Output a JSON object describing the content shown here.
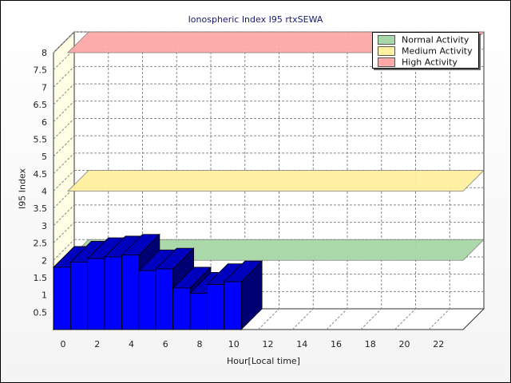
{
  "chart_data": {
    "type": "bar",
    "title": "Ionospheric Index I95 rtxSEWA",
    "xlabel": "Hour[Local time]",
    "ylabel": "I95 Index",
    "x_ticks": [
      "0",
      "2",
      "4",
      "6",
      "8",
      "10",
      "12",
      "14",
      "16",
      "18",
      "20",
      "22"
    ],
    "y_ticks": [
      "0.5",
      "1",
      "1.5",
      "2",
      "2.5",
      "3",
      "3.5",
      "4",
      "4.5",
      "5",
      "5.5",
      "6",
      "6.5",
      "7",
      "7.5",
      "8"
    ],
    "ylim": [
      0,
      8
    ],
    "xlim": [
      0,
      24
    ],
    "grid": true,
    "three_d": true,
    "legend_position": "top-right",
    "series": [
      {
        "x": [
          0,
          1,
          2,
          3,
          4,
          5,
          6,
          7,
          8,
          9,
          10
        ],
        "values": [
          1.8,
          1.95,
          2.05,
          2.1,
          2.15,
          1.7,
          1.75,
          1.2,
          1.05,
          1.3,
          1.38
        ],
        "color": "#0000ff"
      }
    ],
    "activity_levels": [
      {
        "name": "Normal Activity",
        "value": 2.0,
        "color": "#a8d8a8"
      },
      {
        "name": "Medium Activity",
        "value": 4.0,
        "color": "#fff0a0"
      },
      {
        "name": "High Activity",
        "value": 8.0,
        "color": "#ffa8a8"
      }
    ]
  }
}
